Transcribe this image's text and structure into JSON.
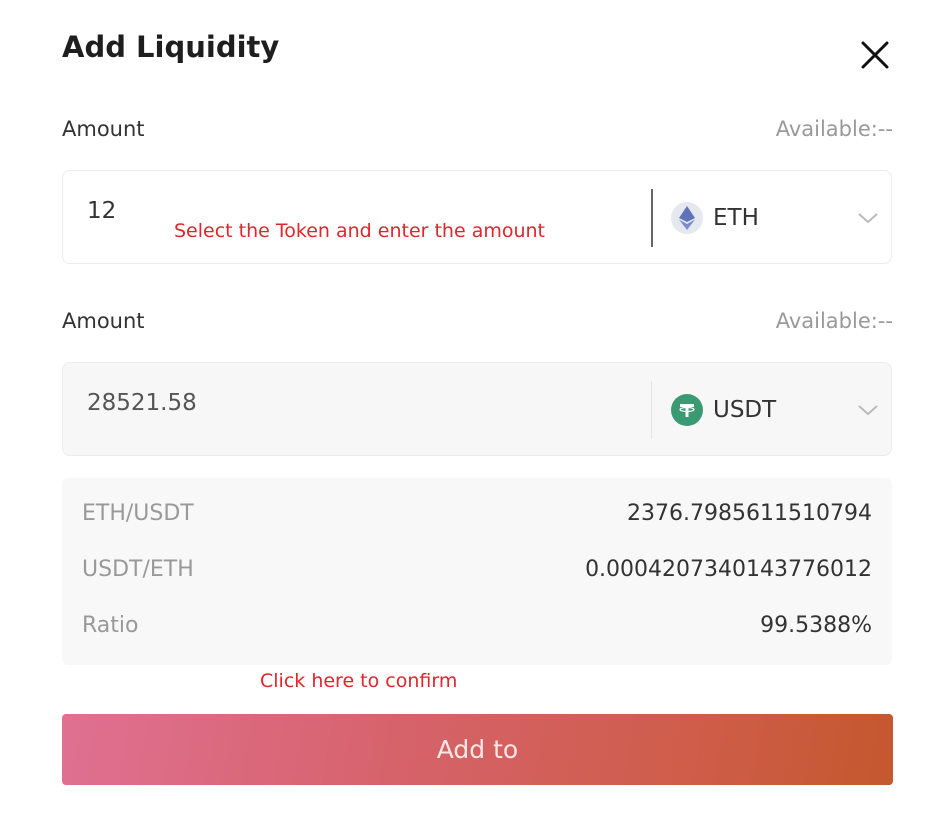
{
  "dialog": {
    "title": "Add Liquidity",
    "close_icon": "close-icon"
  },
  "fields": [
    {
      "label": "Amount",
      "available": "Available:--",
      "value": "12",
      "token": "ETH",
      "token_icon": "ethereum-icon"
    },
    {
      "label": "Amount",
      "available": "Available:--",
      "value": "28521.58",
      "token": "USDT",
      "token_icon": "tether-icon"
    }
  ],
  "annotations": {
    "select_token": "Select the Token and enter the amount",
    "confirm": "Click here to confirm"
  },
  "info": [
    {
      "key": "ETH/USDT",
      "value": "2376.7985611510794"
    },
    {
      "key": "USDT/ETH",
      "value": "0.00042073401437760​12"
    },
    {
      "key": "Ratio",
      "value": "99.5388%"
    }
  ],
  "button": {
    "label": "Add to"
  },
  "colors": {
    "annotation": "#e0262b",
    "button_start": "#e07092",
    "button_end": "#c4582e",
    "tether": "#3a9b72",
    "eth": "#627eea"
  }
}
